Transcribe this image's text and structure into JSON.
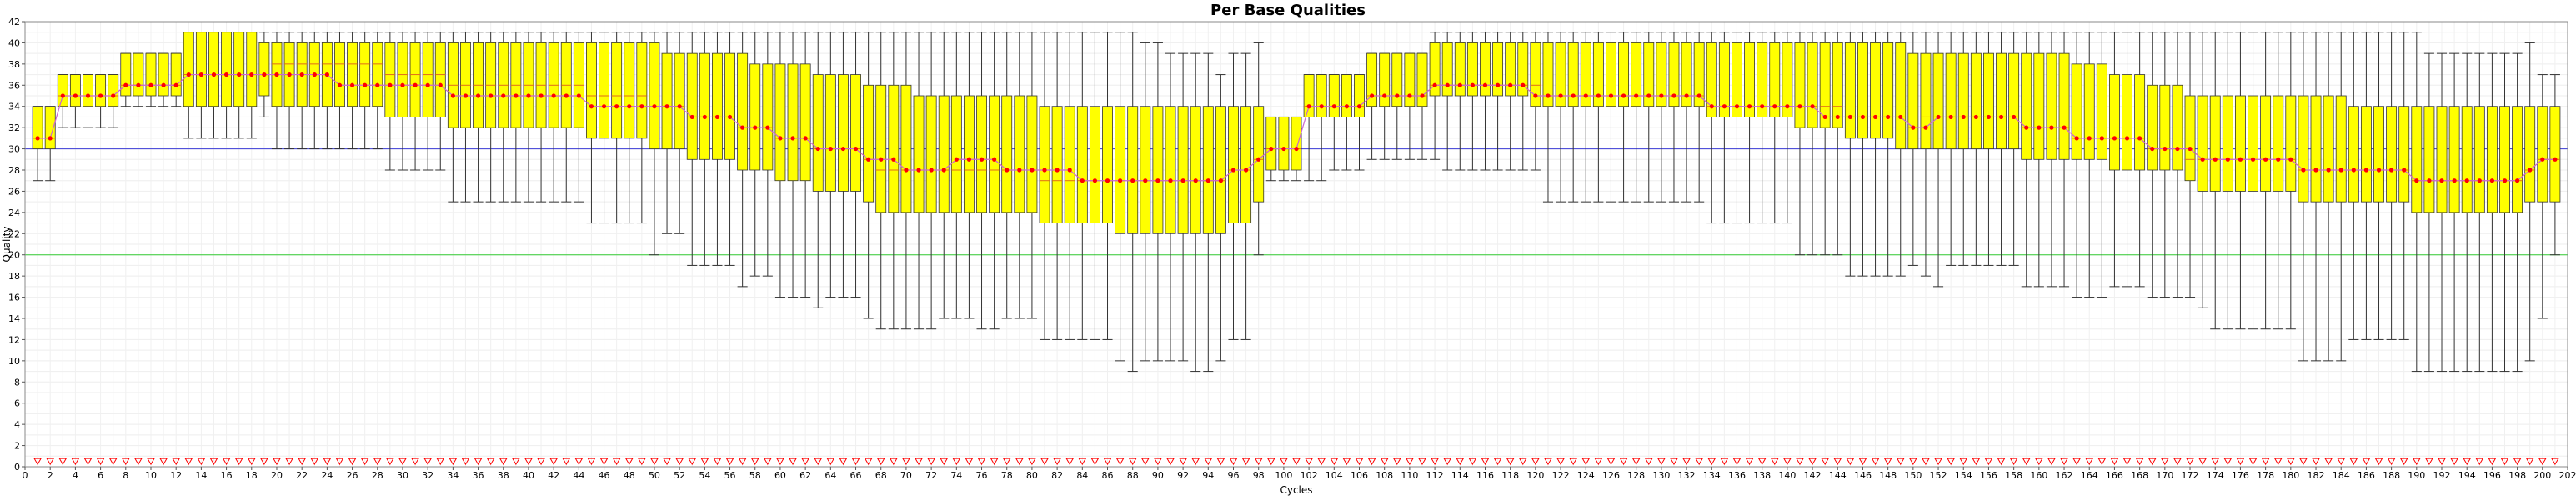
{
  "chart_data": {
    "type": "box",
    "title": "Per Base Qualities",
    "xlabel": "Cycles",
    "ylabel": "Quality",
    "xlim": [
      0,
      202
    ],
    "ylim": [
      0,
      42
    ],
    "x_ticks": [
      0,
      2,
      4,
      6,
      8,
      10,
      12,
      14,
      16,
      18,
      20,
      22,
      24,
      26,
      28,
      30,
      32,
      34,
      36,
      38,
      40,
      42,
      44,
      46,
      48,
      50,
      52,
      54,
      56,
      58,
      60,
      62,
      64,
      66,
      68,
      70,
      72,
      74,
      76,
      78,
      80,
      82,
      84,
      86,
      88,
      90,
      92,
      94,
      96,
      98,
      100,
      102,
      104,
      106,
      108,
      110,
      112,
      114,
      116,
      118,
      120,
      122,
      124,
      126,
      128,
      130,
      132,
      134,
      136,
      138,
      140,
      142,
      144,
      146,
      148,
      150,
      152,
      154,
      156,
      158,
      160,
      162,
      164,
      166,
      168,
      170,
      172,
      174,
      176,
      178,
      180,
      182,
      184,
      186,
      188,
      190,
      192,
      194,
      196,
      198,
      200,
      202
    ],
    "y_ticks": [
      0,
      2,
      4,
      6,
      8,
      10,
      12,
      14,
      16,
      18,
      20,
      22,
      24,
      26,
      28,
      30,
      32,
      34,
      36,
      38,
      40,
      42
    ],
    "reference_lines": [
      {
        "y": 30,
        "color": "#3b3bd6"
      },
      {
        "y": 20,
        "color": "#33cc33"
      }
    ],
    "colors": {
      "box_fill": "#ffff00",
      "box_stroke": "#333333",
      "median": "#e06c1a",
      "mean_marker": "#ff0000",
      "mean_line": "#cc66cc",
      "min_marker": "#ff0000"
    },
    "min_markers_y": 0.5,
    "x": [
      1,
      2,
      3,
      4,
      5,
      6,
      7,
      8,
      9,
      10,
      11,
      12,
      13,
      14,
      15,
      16,
      17,
      18,
      19,
      20,
      21,
      22,
      23,
      24,
      25,
      26,
      27,
      28,
      29,
      30,
      31,
      32,
      33,
      34,
      35,
      36,
      37,
      38,
      39,
      40,
      41,
      42,
      43,
      44,
      45,
      46,
      47,
      48,
      49,
      50,
      51,
      52,
      53,
      54,
      55,
      56,
      57,
      58,
      59,
      60,
      61,
      62,
      63,
      64,
      65,
      66,
      67,
      68,
      69,
      70,
      71,
      72,
      73,
      74,
      75,
      76,
      77,
      78,
      79,
      80,
      81,
      82,
      83,
      84,
      85,
      86,
      87,
      88,
      89,
      90,
      91,
      92,
      93,
      94,
      95,
      96,
      97,
      98,
      99,
      100,
      101,
      102,
      103,
      104,
      105,
      106,
      107,
      108,
      109,
      110,
      111,
      112,
      113,
      114,
      115,
      116,
      117,
      118,
      119,
      120,
      121,
      122,
      123,
      124,
      125,
      126,
      127,
      128,
      129,
      130,
      131,
      132,
      133,
      134,
      135,
      136,
      137,
      138,
      139,
      140,
      141,
      142,
      143,
      144,
      145,
      146,
      147,
      148,
      149,
      150,
      151,
      152,
      153,
      154,
      155,
      156,
      157,
      158,
      159,
      160,
      161,
      162,
      163,
      164,
      165,
      166,
      167,
      168,
      169,
      170,
      171,
      172,
      173,
      174,
      175,
      176,
      177,
      178,
      179,
      180,
      181,
      182,
      183,
      184,
      185,
      186,
      187,
      188,
      189,
      190,
      191,
      192,
      193,
      194,
      195,
      196,
      197,
      198,
      199,
      200,
      201
    ],
    "whisker_low": [
      27,
      27,
      32,
      32,
      32,
      32,
      32,
      34,
      34,
      34,
      34,
      34,
      31,
      31,
      31,
      31,
      31,
      31,
      33,
      30,
      30,
      30,
      30,
      30,
      30,
      30,
      30,
      30,
      28,
      28,
      28,
      28,
      28,
      25,
      25,
      25,
      25,
      25,
      25,
      25,
      25,
      25,
      25,
      25,
      23,
      23,
      23,
      23,
      23,
      20,
      22,
      22,
      19,
      19,
      19,
      19,
      17,
      18,
      18,
      16,
      16,
      16,
      15,
      16,
      16,
      16,
      14,
      13,
      13,
      13,
      13,
      13,
      14,
      14,
      14,
      13,
      13,
      14,
      14,
      14,
      12,
      12,
      12,
      12,
      12,
      12,
      10,
      9,
      10,
      10,
      10,
      10,
      9,
      9,
      10,
      12,
      12,
      20,
      27,
      27,
      27,
      27,
      27,
      28,
      28,
      28,
      29,
      29,
      29,
      29,
      29,
      29,
      28,
      28,
      28,
      28,
      28,
      28,
      28,
      28,
      25,
      25,
      25,
      25,
      25,
      25,
      25,
      25,
      25,
      25,
      25,
      25,
      25,
      23,
      23,
      23,
      23,
      23,
      23,
      23,
      20,
      20,
      20,
      20,
      18,
      18,
      18,
      18,
      18,
      19,
      18,
      17,
      19,
      19,
      19,
      19,
      19,
      19,
      17,
      17,
      17,
      17,
      16,
      16,
      16,
      17,
      17,
      17,
      16,
      16,
      16,
      16,
      15,
      13,
      13,
      13,
      13,
      13,
      13,
      13,
      10,
      10,
      10,
      10,
      12,
      12,
      12,
      12,
      12,
      9,
      9,
      9,
      9,
      9,
      9,
      9,
      9,
      9,
      10,
      14,
      20
    ],
    "q1": [
      30,
      30,
      34,
      34,
      34,
      34,
      34,
      35,
      35,
      35,
      35,
      35,
      34,
      34,
      34,
      34,
      34,
      34,
      35,
      34,
      34,
      34,
      34,
      34,
      34,
      34,
      34,
      34,
      33,
      33,
      33,
      33,
      33,
      32,
      32,
      32,
      32,
      32,
      32,
      32,
      32,
      32,
      32,
      32,
      31,
      31,
      31,
      31,
      31,
      30,
      30,
      30,
      29,
      29,
      29,
      29,
      28,
      28,
      28,
      27,
      27,
      27,
      26,
      26,
      26,
      26,
      25,
      24,
      24,
      24,
      24,
      24,
      24,
      24,
      24,
      24,
      24,
      24,
      24,
      24,
      23,
      23,
      23,
      23,
      23,
      23,
      22,
      22,
      22,
      22,
      22,
      22,
      22,
      22,
      22,
      23,
      23,
      25,
      28,
      28,
      28,
      33,
      33,
      33,
      33,
      33,
      34,
      34,
      34,
      34,
      34,
      35,
      35,
      35,
      35,
      35,
      35,
      35,
      35,
      34,
      34,
      34,
      34,
      34,
      34,
      34,
      34,
      34,
      34,
      34,
      34,
      34,
      34,
      33,
      33,
      33,
      33,
      33,
      33,
      33,
      32,
      32,
      32,
      32,
      31,
      31,
      31,
      31,
      30,
      30,
      30,
      30,
      30,
      30,
      30,
      30,
      30,
      30,
      29,
      29,
      29,
      29,
      29,
      29,
      29,
      28,
      28,
      28,
      28,
      28,
      28,
      27,
      26,
      26,
      26,
      26,
      26,
      26,
      26,
      26,
      25,
      25,
      25,
      25,
      25,
      25,
      25,
      25,
      25,
      24,
      24,
      24,
      24,
      24,
      24,
      24,
      24,
      24,
      25,
      25,
      25
    ],
    "median": [
      31,
      31,
      35,
      35,
      35,
      35,
      35,
      36,
      36,
      36,
      36,
      36,
      37,
      37,
      37,
      37,
      37,
      37,
      37,
      38,
      38,
      38,
      38,
      38,
      38,
      38,
      38,
      38,
      37,
      37,
      37,
      37,
      37,
      36,
      36,
      36,
      36,
      36,
      36,
      36,
      36,
      36,
      36,
      36,
      35,
      35,
      35,
      35,
      35,
      34,
      34,
      34,
      33,
      33,
      33,
      33,
      32,
      32,
      32,
      31,
      31,
      31,
      30,
      30,
      30,
      30,
      29,
      28,
      28,
      28,
      28,
      28,
      28,
      28,
      28,
      28,
      28,
      28,
      28,
      28,
      27,
      27,
      27,
      27,
      27,
      27,
      27,
      27,
      27,
      27,
      27,
      27,
      27,
      27,
      27,
      28,
      28,
      29,
      30,
      30,
      30,
      34,
      34,
      34,
      34,
      34,
      35,
      35,
      35,
      35,
      35,
      36,
      36,
      36,
      36,
      36,
      36,
      36,
      36,
      36,
      35,
      35,
      35,
      35,
      35,
      35,
      35,
      35,
      35,
      35,
      35,
      35,
      35,
      34,
      34,
      34,
      34,
      34,
      34,
      34,
      34,
      34,
      34,
      34,
      33,
      33,
      33,
      33,
      33,
      32,
      33,
      33,
      33,
      33,
      33,
      33,
      33,
      33,
      32,
      32,
      32,
      32,
      31,
      31,
      31,
      31,
      31,
      31,
      30,
      30,
      30,
      29,
      29,
      29,
      29,
      29,
      29,
      29,
      29,
      29,
      28,
      28,
      28,
      28,
      28,
      28,
      28,
      28,
      28,
      27,
      27,
      27,
      27,
      27,
      27,
      27,
      27,
      27,
      28,
      29,
      29
    ],
    "q3": [
      34,
      34,
      37,
      37,
      37,
      37,
      37,
      39,
      39,
      39,
      39,
      39,
      41,
      41,
      41,
      41,
      41,
      41,
      40,
      40,
      40,
      40,
      40,
      40,
      40,
      40,
      40,
      40,
      40,
      40,
      40,
      40,
      40,
      40,
      40,
      40,
      40,
      40,
      40,
      40,
      40,
      40,
      40,
      40,
      40,
      40,
      40,
      40,
      40,
      40,
      39,
      39,
      39,
      39,
      39,
      39,
      39,
      38,
      38,
      38,
      38,
      38,
      37,
      37,
      37,
      37,
      36,
      36,
      36,
      36,
      35,
      35,
      35,
      35,
      35,
      35,
      35,
      35,
      35,
      35,
      34,
      34,
      34,
      34,
      34,
      34,
      34,
      34,
      34,
      34,
      34,
      34,
      34,
      34,
      34,
      34,
      34,
      34,
      33,
      33,
      33,
      37,
      37,
      37,
      37,
      37,
      39,
      39,
      39,
      39,
      39,
      40,
      40,
      40,
      40,
      40,
      40,
      40,
      40,
      40,
      40,
      40,
      40,
      40,
      40,
      40,
      40,
      40,
      40,
      40,
      40,
      40,
      40,
      40,
      40,
      40,
      40,
      40,
      40,
      40,
      40,
      40,
      40,
      40,
      40,
      40,
      40,
      40,
      40,
      39,
      39,
      39,
      39,
      39,
      39,
      39,
      39,
      39,
      39,
      39,
      39,
      39,
      38,
      38,
      38,
      37,
      37,
      37,
      36,
      36,
      36,
      35,
      35,
      35,
      35,
      35,
      35,
      35,
      35,
      35,
      35,
      35,
      35,
      35,
      34,
      34,
      34,
      34,
      34,
      34,
      34,
      34,
      34,
      34,
      34,
      34,
      34,
      34,
      34,
      34,
      34
    ],
    "whisker_high": [
      34,
      34,
      37,
      37,
      37,
      37,
      37,
      39,
      39,
      39,
      39,
      39,
      41,
      41,
      41,
      41,
      41,
      41,
      41,
      41,
      41,
      41,
      41,
      41,
      41,
      41,
      41,
      41,
      41,
      41,
      41,
      41,
      41,
      41,
      41,
      41,
      41,
      41,
      41,
      41,
      41,
      41,
      41,
      41,
      41,
      41,
      41,
      41,
      41,
      41,
      41,
      41,
      41,
      41,
      41,
      41,
      41,
      41,
      41,
      41,
      41,
      41,
      41,
      41,
      41,
      41,
      41,
      41,
      41,
      41,
      41,
      41,
      41,
      41,
      41,
      41,
      41,
      41,
      41,
      41,
      41,
      41,
      41,
      41,
      41,
      41,
      41,
      41,
      40,
      40,
      39,
      39,
      39,
      39,
      37,
      39,
      39,
      40,
      33,
      33,
      33,
      37,
      37,
      37,
      37,
      37,
      39,
      39,
      39,
      39,
      39,
      41,
      41,
      41,
      41,
      41,
      41,
      41,
      41,
      41,
      41,
      41,
      41,
      41,
      41,
      41,
      41,
      41,
      41,
      41,
      41,
      41,
      41,
      41,
      41,
      41,
      41,
      41,
      41,
      41,
      41,
      41,
      41,
      41,
      41,
      41,
      41,
      41,
      41,
      41,
      41,
      41,
      41,
      41,
      41,
      41,
      41,
      41,
      41,
      41,
      41,
      41,
      41,
      41,
      41,
      41,
      41,
      41,
      41,
      41,
      41,
      41,
      41,
      41,
      41,
      41,
      41,
      41,
      41,
      41,
      41,
      41,
      41,
      41,
      41,
      41,
      41,
      41,
      41,
      41,
      39,
      39,
      39,
      39,
      39,
      39,
      39,
      39,
      40,
      37,
      37
    ],
    "mean": [
      31,
      31,
      35,
      35,
      35,
      35,
      35,
      36,
      36,
      36,
      36,
      36,
      37,
      37,
      37,
      37,
      37,
      37,
      37,
      37,
      37,
      37,
      37,
      37,
      36,
      36,
      36,
      36,
      36,
      36,
      36,
      36,
      36,
      35,
      35,
      35,
      35,
      35,
      35,
      35,
      35,
      35,
      35,
      35,
      34,
      34,
      34,
      34,
      34,
      34,
      34,
      34,
      33,
      33,
      33,
      33,
      32,
      32,
      32,
      31,
      31,
      31,
      30,
      30,
      30,
      30,
      29,
      29,
      29,
      28,
      28,
      28,
      28,
      29,
      29,
      29,
      29,
      28,
      28,
      28,
      28,
      28,
      28,
      27,
      27,
      27,
      27,
      27,
      27,
      27,
      27,
      27,
      27,
      27,
      27,
      28,
      28,
      29,
      30,
      30,
      30,
      34,
      34,
      34,
      34,
      34,
      35,
      35,
      35,
      35,
      35,
      36,
      36,
      36,
      36,
      36,
      36,
      36,
      36,
      35,
      35,
      35,
      35,
      35,
      35,
      35,
      35,
      35,
      35,
      35,
      35,
      35,
      35,
      34,
      34,
      34,
      34,
      34,
      34,
      34,
      34,
      34,
      33,
      33,
      33,
      33,
      33,
      33,
      33,
      32,
      32,
      33,
      33,
      33,
      33,
      33,
      33,
      33,
      32,
      32,
      32,
      32,
      31,
      31,
      31,
      31,
      31,
      31,
      30,
      30,
      30,
      30,
      29,
      29,
      29,
      29,
      29,
      29,
      29,
      29,
      28,
      28,
      28,
      28,
      28,
      28,
      28,
      28,
      28,
      27,
      27,
      27,
      27,
      27,
      27,
      27,
      27,
      27,
      28,
      29,
      29
    ]
  }
}
